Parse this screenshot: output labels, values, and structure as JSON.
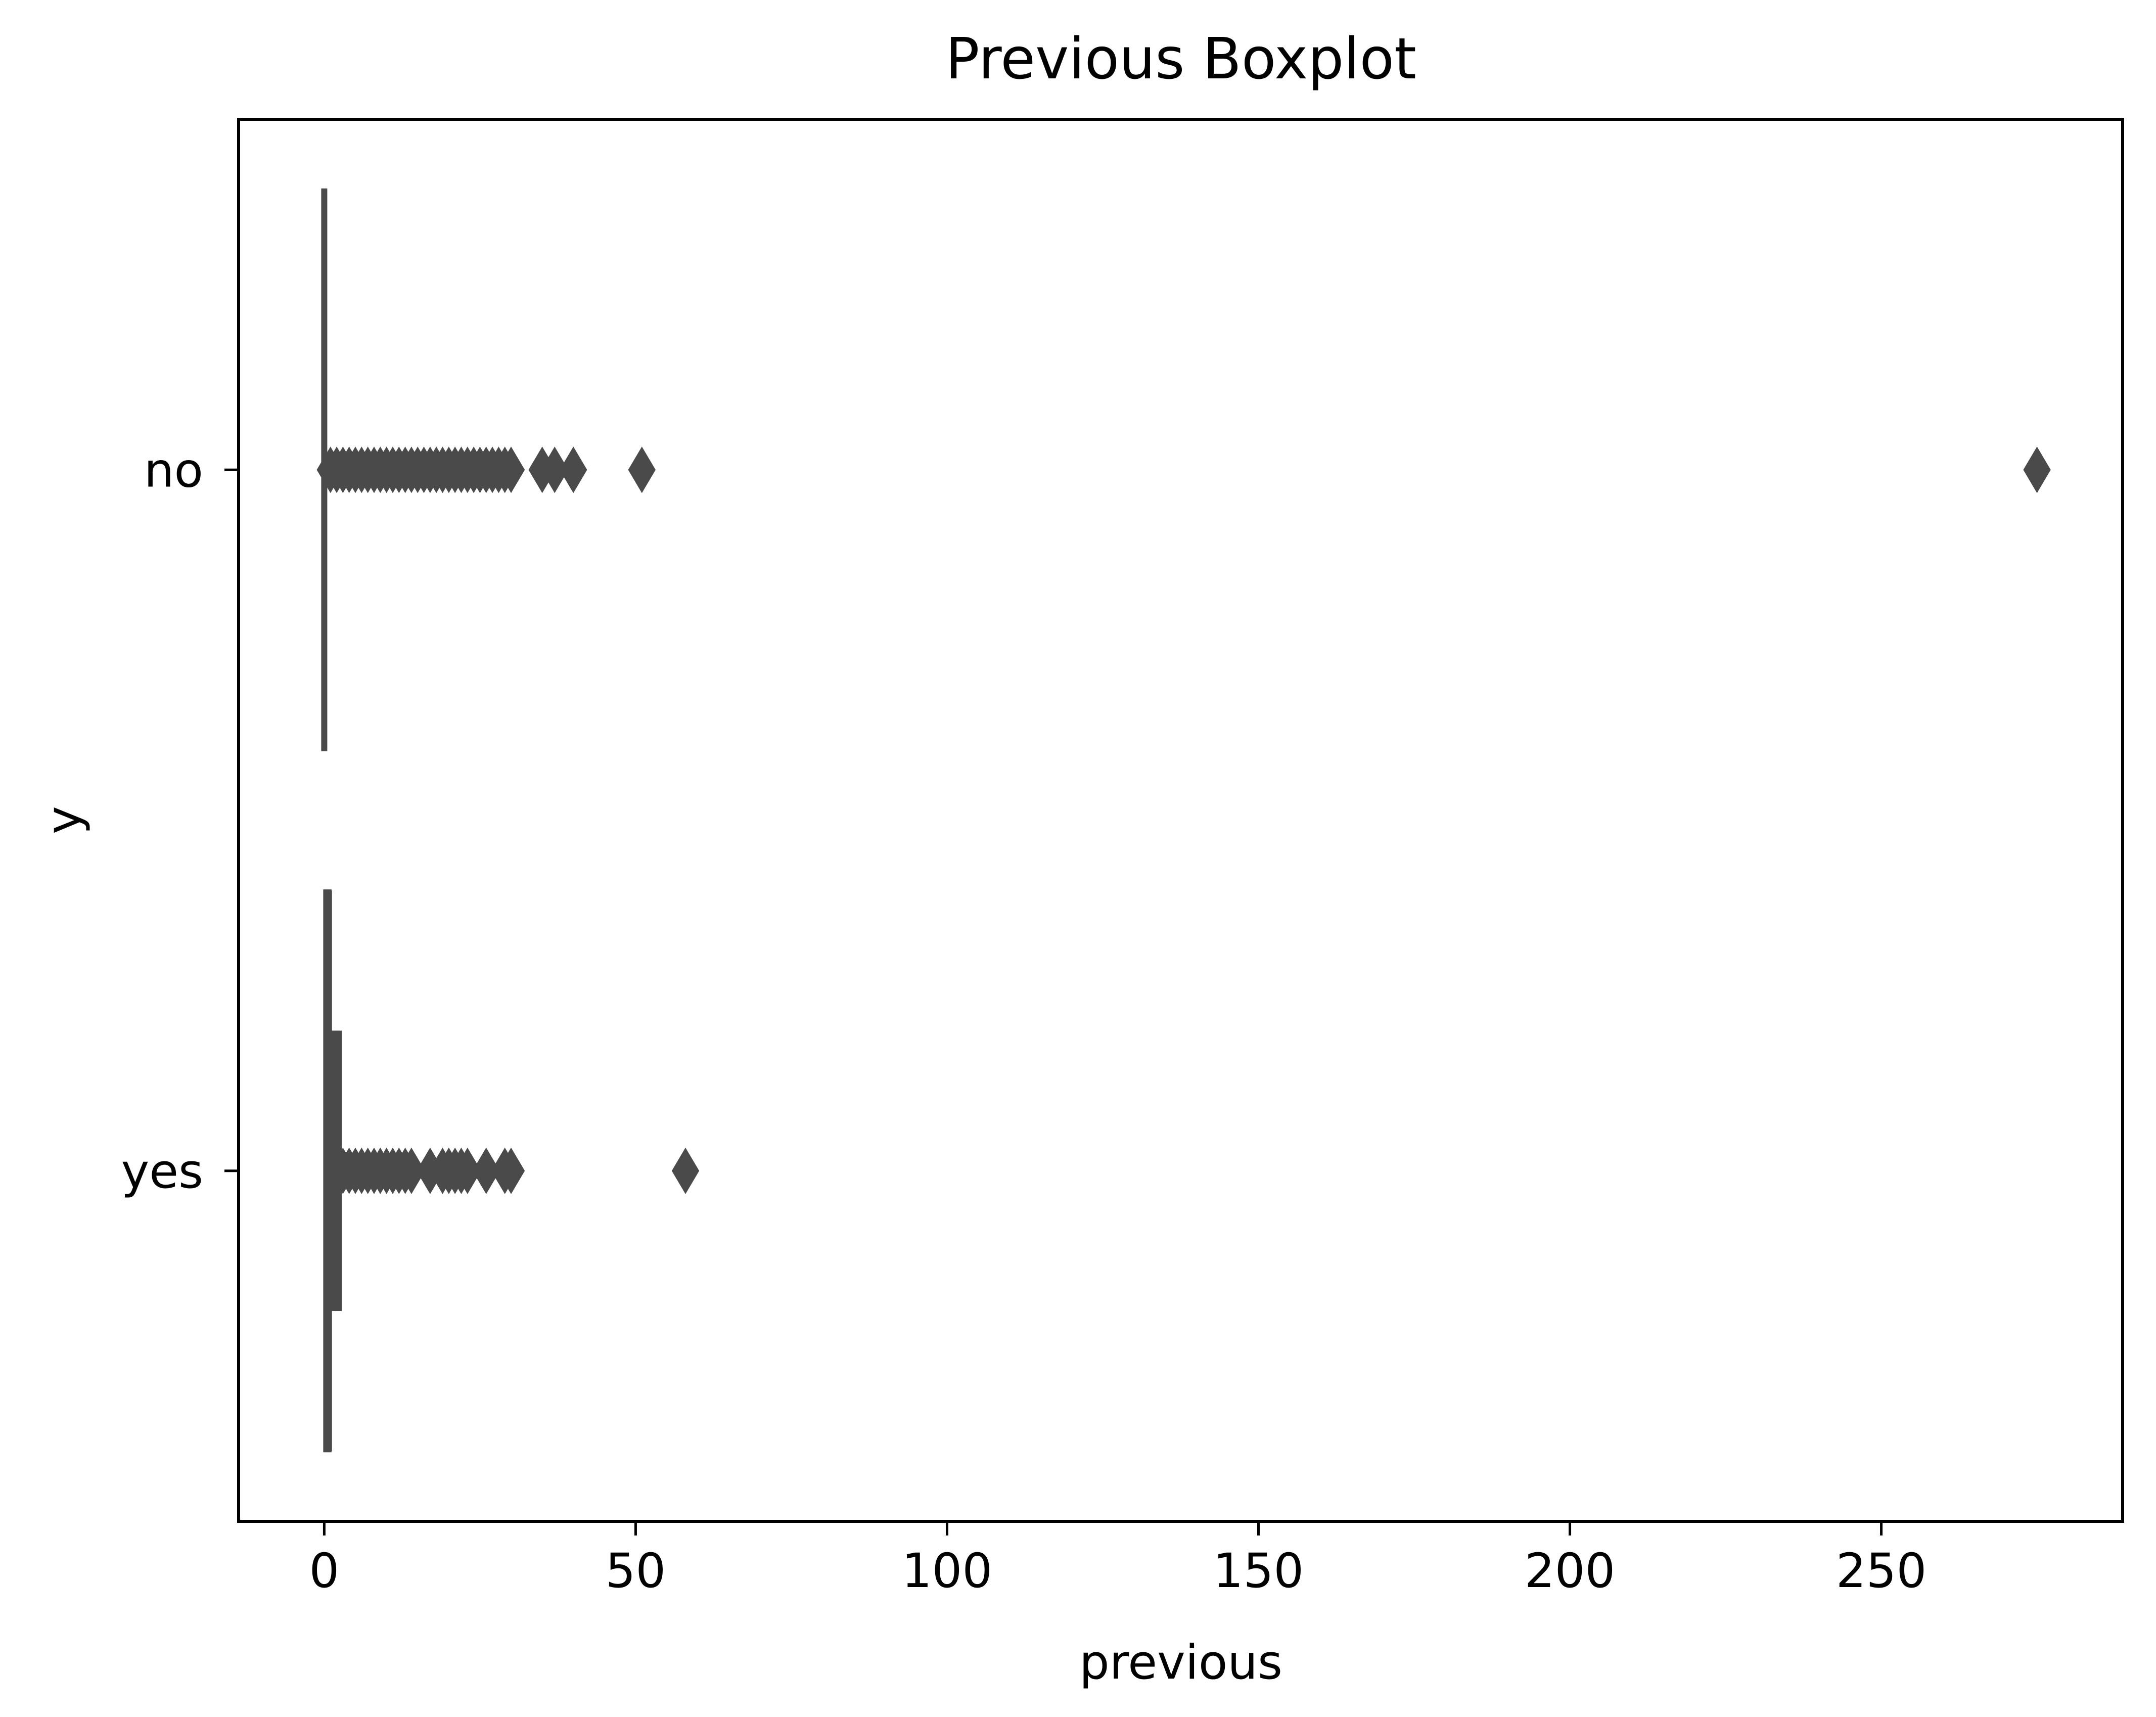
{
  "chart_data": {
    "type": "boxplot",
    "orientation": "horizontal",
    "title": "Previous Boxplot",
    "xlabel": "previous",
    "ylabel": "y",
    "xlim": [
      -13.75,
      288.75
    ],
    "xticks": [
      0,
      50,
      100,
      150,
      200,
      250
    ],
    "xtick_labels": [
      "0",
      "50",
      "100",
      "150",
      "200",
      "250"
    ],
    "categories": [
      "no",
      "yes"
    ],
    "grid": false,
    "colors": {
      "box": "#4a4a4a",
      "axes": "#000000",
      "background": "#ffffff"
    },
    "boxes": [
      {
        "category": "no",
        "whislo": 0,
        "q1": 0,
        "median": 0,
        "q3": 0,
        "whishi": 0,
        "outliers": [
          1,
          2,
          3,
          4,
          5,
          6,
          7,
          8,
          9,
          10,
          11,
          12,
          13,
          14,
          15,
          16,
          17,
          18,
          19,
          20,
          21,
          22,
          23,
          24,
          25,
          26,
          27,
          28,
          29,
          30,
          35,
          37,
          40,
          51,
          275
        ]
      },
      {
        "category": "yes",
        "whislo": 0,
        "q1": 0,
        "median": 1,
        "q3": 1,
        "whishi": 2.5,
        "outliers": [
          3,
          4,
          5,
          6,
          7,
          8,
          9,
          10,
          11,
          12,
          13,
          14,
          17,
          19,
          20,
          21,
          22,
          23,
          26,
          29,
          30,
          58
        ]
      }
    ]
  }
}
